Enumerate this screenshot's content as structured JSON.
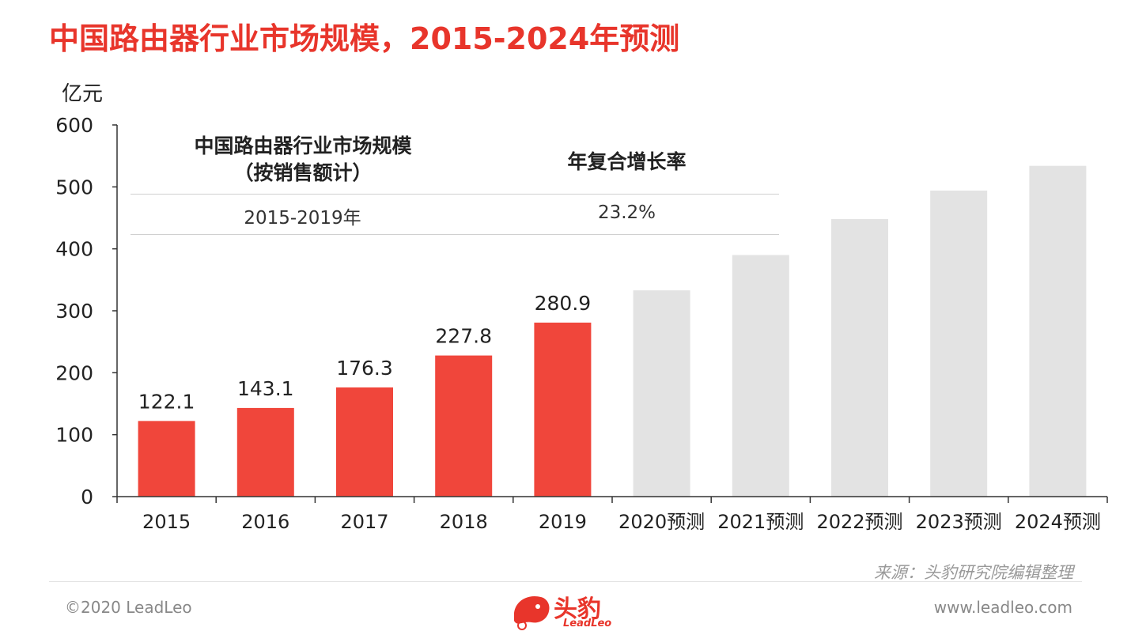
{
  "title": "中国路由器行业市场规模，2015-2024年预测",
  "unit_label": "亿元",
  "table": {
    "header_left": [
      "中国路由器行业市场规模",
      "（按销售额计）"
    ],
    "header_right": "年复合增长率",
    "row_period": "2015-2019年",
    "row_cagr": "23.2%"
  },
  "chart_data": {
    "type": "bar",
    "categories": [
      "2015",
      "2016",
      "2017",
      "2018",
      "2019",
      "2020预测",
      "2021预测",
      "2022预测",
      "2023预测",
      "2024预测"
    ],
    "values": [
      122.1,
      143.1,
      176.3,
      227.8,
      280.9,
      333,
      390,
      448,
      494,
      534
    ],
    "data_labels": [
      "122.1",
      "143.1",
      "176.3",
      "227.8",
      "280.9",
      "",
      "",
      "",
      "",
      ""
    ],
    "bar_colors": [
      "#f0463b",
      "#f0463b",
      "#f0463b",
      "#f0463b",
      "#f0463b",
      "#e3e3e3",
      "#e3e3e3",
      "#e3e3e3",
      "#e3e3e3",
      "#e3e3e3"
    ],
    "ylim": [
      0,
      600
    ],
    "yticks": [
      "0",
      "100",
      "200",
      "300",
      "400",
      "500",
      "600"
    ],
    "ylabel": "亿元",
    "grid": false
  },
  "source": "来源：头豹研究院编辑整理",
  "footer": {
    "copyright": "©2020 LeadLeo",
    "website": "www.leadleo.com",
    "logo_text": "头豹",
    "logo_sub": "LeadLeo"
  },
  "colors": {
    "accent": "#e8352b",
    "actual_bar": "#f0463b",
    "forecast_bar": "#e3e3e3"
  }
}
